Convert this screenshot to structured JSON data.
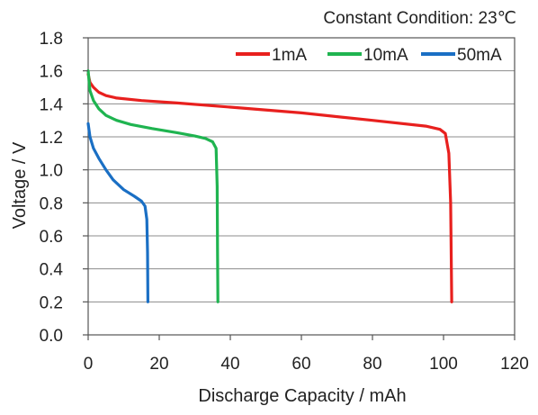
{
  "chart_data": {
    "type": "line",
    "annotation": "Constant Condition: 23℃",
    "xlabel": "Discharge Capacity / mAh",
    "ylabel": "Voltage / V",
    "xlim": [
      0,
      120
    ],
    "ylim": [
      0.0,
      1.8
    ],
    "xticks": [
      0,
      20,
      40,
      60,
      80,
      100,
      120
    ],
    "yticks": [
      0.0,
      0.2,
      0.4,
      0.6,
      0.8,
      1.0,
      1.2,
      1.4,
      1.6,
      1.8
    ],
    "xtick_labels": [
      "0",
      "20",
      "40",
      "60",
      "80",
      "100",
      "120"
    ],
    "ytick_labels": [
      "0.0",
      "0.2",
      "0.4",
      "0.6",
      "0.8",
      "1.0",
      "1.2",
      "1.4",
      "1.6",
      "1.8"
    ],
    "grid": "horizontal",
    "legend_position": "top-right",
    "series": [
      {
        "name": "1mA",
        "color": "#e8201e",
        "points": [
          [
            0,
            1.58
          ],
          [
            0.5,
            1.53
          ],
          [
            1.5,
            1.5
          ],
          [
            3,
            1.47
          ],
          [
            5,
            1.45
          ],
          [
            8,
            1.435
          ],
          [
            15,
            1.42
          ],
          [
            25,
            1.405
          ],
          [
            40,
            1.38
          ],
          [
            60,
            1.345
          ],
          [
            80,
            1.3
          ],
          [
            95,
            1.265
          ],
          [
            99,
            1.245
          ],
          [
            100.5,
            1.22
          ],
          [
            101.5,
            1.1
          ],
          [
            102,
            0.8
          ],
          [
            102.2,
            0.4
          ],
          [
            102.3,
            0.2
          ]
        ]
      },
      {
        "name": "10mA",
        "color": "#1fb450",
        "points": [
          [
            0,
            1.6
          ],
          [
            0.5,
            1.48
          ],
          [
            1.5,
            1.42
          ],
          [
            3,
            1.37
          ],
          [
            5,
            1.33
          ],
          [
            8,
            1.3
          ],
          [
            12,
            1.275
          ],
          [
            18,
            1.25
          ],
          [
            25,
            1.225
          ],
          [
            30,
            1.205
          ],
          [
            33,
            1.19
          ],
          [
            35,
            1.17
          ],
          [
            36,
            1.13
          ],
          [
            36.3,
            0.9
          ],
          [
            36.4,
            0.5
          ],
          [
            36.5,
            0.2
          ]
        ]
      },
      {
        "name": "50mA",
        "color": "#1a6fc4",
        "points": [
          [
            0,
            1.28
          ],
          [
            0.5,
            1.2
          ],
          [
            1.5,
            1.13
          ],
          [
            3,
            1.07
          ],
          [
            5,
            1.0
          ],
          [
            7,
            0.94
          ],
          [
            10,
            0.88
          ],
          [
            13,
            0.84
          ],
          [
            15,
            0.81
          ],
          [
            16,
            0.78
          ],
          [
            16.5,
            0.7
          ],
          [
            16.7,
            0.5
          ],
          [
            16.8,
            0.2
          ]
        ]
      }
    ]
  }
}
